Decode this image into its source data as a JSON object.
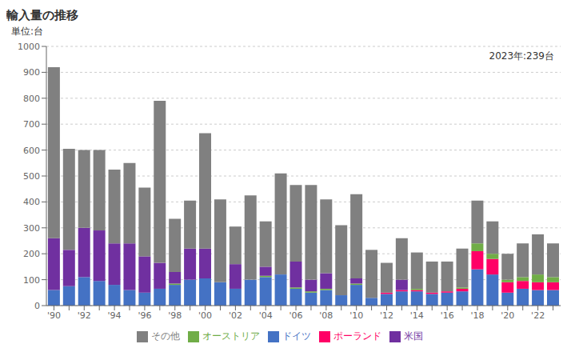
{
  "chart_data": {
    "type": "bar",
    "title": "輸入量の推移",
    "ylabel": "単位:台",
    "annotation": "2023年:239台",
    "stacked": true,
    "grid": true,
    "legend": "bottom",
    "categories": [
      "'90",
      null,
      "'92",
      null,
      "'94",
      null,
      "'96",
      null,
      "'98",
      null,
      "'00",
      null,
      "'02",
      null,
      "'04",
      null,
      "'06",
      null,
      "'08",
      null,
      "'10",
      null,
      "'12",
      null,
      "'14",
      null,
      "'16",
      null,
      "'18",
      null,
      "'20",
      null,
      "'22",
      null
    ],
    "ylim": [
      0,
      1000
    ],
    "yticks": [
      0,
      100,
      200,
      300,
      400,
      500,
      600,
      700,
      800,
      900,
      1000
    ],
    "series": [
      {
        "name": "ドイツ",
        "color": "#4472C4",
        "values": [
          60,
          75,
          110,
          95,
          80,
          60,
          50,
          65,
          80,
          100,
          105,
          90,
          65,
          100,
          110,
          120,
          65,
          50,
          60,
          40,
          80,
          30,
          45,
          55,
          55,
          45,
          50,
          55,
          140,
          120,
          50,
          65,
          60,
          60
        ]
      },
      {
        "name": "ポーランド",
        "color": "#FF0066",
        "values": [
          0,
          0,
          0,
          0,
          0,
          0,
          0,
          0,
          0,
          0,
          0,
          0,
          0,
          0,
          0,
          0,
          0,
          0,
          0,
          0,
          0,
          0,
          5,
          5,
          5,
          5,
          5,
          10,
          70,
          60,
          40,
          30,
          30,
          30
        ]
      },
      {
        "name": "オーストリア",
        "color": "#70AD47",
        "values": [
          0,
          0,
          0,
          0,
          0,
          0,
          0,
          0,
          5,
          0,
          0,
          0,
          0,
          0,
          5,
          0,
          5,
          5,
          5,
          0,
          5,
          0,
          0,
          0,
          5,
          0,
          0,
          5,
          30,
          20,
          10,
          15,
          30,
          20
        ]
      },
      {
        "name": "米国",
        "color": "#7030A0",
        "values": [
          200,
          140,
          190,
          195,
          160,
          180,
          140,
          100,
          45,
          120,
          115,
          0,
          95,
          0,
          35,
          0,
          100,
          45,
          60,
          0,
          20,
          0,
          0,
          40,
          0,
          0,
          0,
          0,
          0,
          0,
          0,
          0,
          0,
          0
        ]
      },
      {
        "name": "その他",
        "color": "#808080",
        "values": [
          660,
          390,
          300,
          310,
          285,
          310,
          265,
          625,
          205,
          185,
          445,
          320,
          145,
          325,
          175,
          390,
          295,
          365,
          285,
          270,
          325,
          185,
          115,
          160,
          140,
          120,
          115,
          150,
          165,
          125,
          100,
          130,
          155,
          130
        ]
      }
    ]
  }
}
